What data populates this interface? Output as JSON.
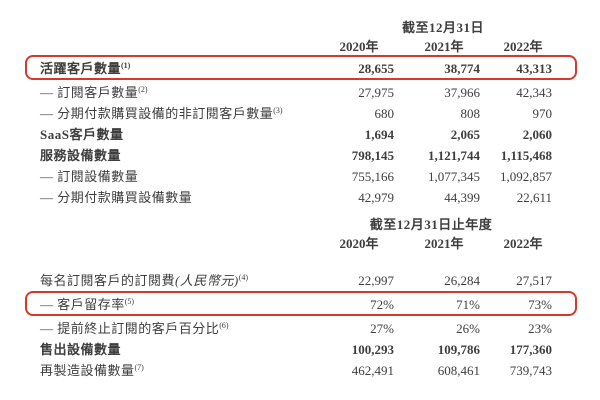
{
  "page": {
    "background": "#ffffff",
    "text_color": "#3e3e3e",
    "highlight_box_color": "#d6382b"
  },
  "table1": {
    "period_header": "截至12月31日",
    "years": [
      "2020年",
      "2021年",
      "2022年"
    ],
    "rows": [
      {
        "label": "活躍客戶數量",
        "sup": "(1)",
        "values": [
          "28,655",
          "38,774",
          "43,313"
        ],
        "bold": true,
        "highlighted": true
      },
      {
        "label": "— 訂閱客戶數量",
        "sup": "(2)",
        "values": [
          "27,975",
          "37,966",
          "42,343"
        ],
        "bold": false,
        "highlighted": false
      },
      {
        "label": "— 分期付款購買設備的非訂閱客戶數量",
        "sup": "(3)",
        "values": [
          "680",
          "808",
          "970"
        ],
        "bold": false,
        "highlighted": false
      },
      {
        "label": "SaaS客戶數量",
        "sup": "",
        "values": [
          "1,694",
          "2,065",
          "2,060"
        ],
        "bold": true,
        "highlighted": false
      },
      {
        "label": "服務設備數量",
        "sup": "",
        "values": [
          "798,145",
          "1,121,744",
          "1,115,468"
        ],
        "bold": true,
        "highlighted": false
      },
      {
        "label": "— 訂閱設備數量",
        "sup": "",
        "values": [
          "755,166",
          "1,077,345",
          "1,092,857"
        ],
        "bold": false,
        "highlighted": false
      },
      {
        "label": "— 分期付款購買設備數量",
        "sup": "",
        "values": [
          "42,979",
          "44,399",
          "22,611"
        ],
        "bold": false,
        "highlighted": false
      }
    ]
  },
  "table2": {
    "period_header": "截至12月31日止年度",
    "years": [
      "2020年",
      "2021年",
      "2022年"
    ],
    "rows": [
      {
        "label": "每名訂閱客戶的訂閱費",
        "note": "(人民幣元)",
        "sup": "(4)",
        "values": [
          "22,997",
          "26,284",
          "27,517"
        ],
        "bold": false,
        "highlighted": false
      },
      {
        "label": "— 客戶留存率",
        "note": "",
        "sup": "(5)",
        "values": [
          "72%",
          "71%",
          "73%"
        ],
        "bold": false,
        "highlighted": true
      },
      {
        "label": "— 提前終止訂閱的客戶百分比",
        "note": "",
        "sup": "(6)",
        "values": [
          "27%",
          "26%",
          "23%"
        ],
        "bold": false,
        "highlighted": false
      },
      {
        "label": "售出設備數量",
        "note": "",
        "sup": "",
        "values": [
          "100,293",
          "109,786",
          "177,360"
        ],
        "bold": true,
        "highlighted": false
      },
      {
        "label": "再製造設備數量",
        "note": "",
        "sup": "(7)",
        "values": [
          "462,491",
          "608,461",
          "739,743"
        ],
        "bold": false,
        "highlighted": false
      }
    ]
  }
}
